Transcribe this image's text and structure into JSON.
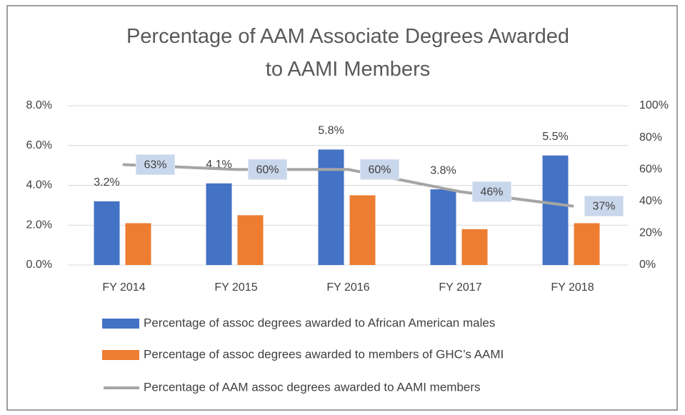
{
  "chart_data": {
    "type": "bar-line",
    "title": "Percentage of AAM Associate Degrees Awarded to AAMI Members",
    "categories": [
      "FY 2014",
      "FY 2015",
      "FY 2016",
      "FY 2017",
      "FY 2018"
    ],
    "series": [
      {
        "name": "Percentage of assoc degrees awarded to African American males",
        "type": "bar",
        "color": "#4472c4",
        "values": [
          3.2,
          4.1,
          5.8,
          3.8,
          5.5
        ],
        "value_labels": [
          "3.2%",
          "4.1%",
          "5.8%",
          "3.8%",
          "5.5%"
        ]
      },
      {
        "name": "Percentage of assoc degrees awarded to members of GHC’s AAMI",
        "type": "bar",
        "color": "#ed7d31",
        "values": [
          2.1,
          2.5,
          3.5,
          1.8,
          2.1
        ]
      },
      {
        "name": "Percentage of AAM assoc degrees awarded to AAMI members",
        "type": "line",
        "color": "#a5a5a5",
        "axis": "y2",
        "values": [
          63,
          60,
          60,
          46,
          37
        ],
        "value_labels": [
          "63%",
          "60%",
          "60%",
          "46%",
          "37%"
        ]
      }
    ],
    "ylim": [
      0,
      8
    ],
    "yticks": [
      {
        "value": 0,
        "label": "0.0%"
      },
      {
        "value": 2,
        "label": "2.0%"
      },
      {
        "value": 4,
        "label": "4.0%"
      },
      {
        "value": 6,
        "label": "6.0%"
      },
      {
        "value": 8,
        "label": "8.0%"
      }
    ],
    "y2lim": [
      0,
      100
    ],
    "y2ticks": [
      {
        "value": 0,
        "label": "0%"
      },
      {
        "value": 20,
        "label": "20%"
      },
      {
        "value": 40,
        "label": "40%"
      },
      {
        "value": 60,
        "label": "60%"
      },
      {
        "value": 80,
        "label": "80%"
      },
      {
        "value": 100,
        "label": "100%"
      }
    ],
    "grid": true,
    "legend": "bottom"
  }
}
